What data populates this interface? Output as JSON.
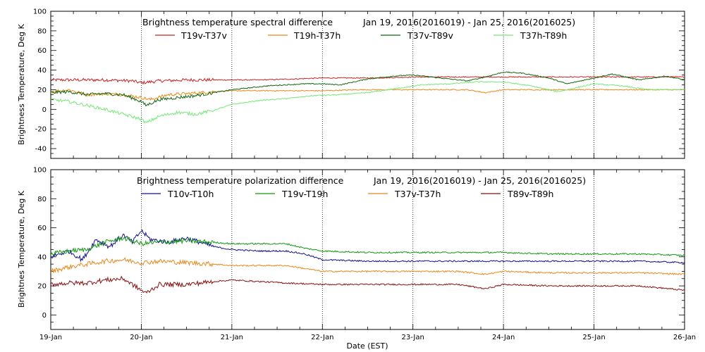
{
  "chart_data": [
    {
      "type": "line",
      "title": "Brightness temperature spectral difference",
      "date_range": "Jan 19, 2016(2016019) - Jan 25, 2016(2016025)",
      "ylabel": "Brightness Temperature, Deg K",
      "xlabel": "",
      "ylim": [
        -50,
        100
      ],
      "yticks": [
        "-40",
        "-20",
        "0",
        "20",
        "40",
        "60",
        "80",
        "100"
      ],
      "ytick_values": [
        -40,
        -20,
        0,
        20,
        40,
        60,
        80,
        100
      ],
      "xlim": [
        0,
        7
      ],
      "grid": "vertical dotted lines at each day",
      "legend_position": "top",
      "series": [
        {
          "name": "T19v-T37v",
          "color": "#cc2222",
          "x": [
            0,
            0.3,
            0.6,
            0.9,
            1.0,
            1.2,
            1.5,
            1.9,
            2.3,
            2.7,
            3.0,
            3.3,
            3.6,
            4.0,
            4.4,
            4.7,
            5.0,
            5.4,
            5.8,
            6.2,
            6.6,
            7.0
          ],
          "y": [
            30,
            30,
            30,
            29,
            27,
            29,
            30,
            30,
            30,
            31,
            32,
            32,
            32,
            33,
            33,
            33,
            33,
            33,
            33,
            33,
            33,
            33
          ]
        },
        {
          "name": "T19h-T37h",
          "color": "#e8881a",
          "x": [
            0,
            0.2,
            0.4,
            0.6,
            0.8,
            1.0,
            1.1,
            1.3,
            1.5,
            1.8,
            2.0,
            2.3,
            2.6,
            3.0,
            3.4,
            3.8,
            4.2,
            4.6,
            4.8,
            5.0,
            5.4,
            5.8,
            6.2,
            6.5,
            6.8,
            7.0
          ],
          "y": [
            18,
            20,
            15,
            16,
            15,
            12,
            10,
            15,
            16,
            18,
            19,
            19,
            19,
            19,
            20,
            20,
            20,
            20,
            17,
            20,
            20,
            20,
            20,
            20,
            20,
            20
          ]
        },
        {
          "name": "T37v-T89v",
          "color": "#116611",
          "x": [
            0,
            0.2,
            0.4,
            0.6,
            0.8,
            1.0,
            1.05,
            1.2,
            1.4,
            1.6,
            1.8,
            2.0,
            2.4,
            2.8,
            3.0,
            3.2,
            3.5,
            3.8,
            4.0,
            4.3,
            4.6,
            4.8,
            5.0,
            5.2,
            5.5,
            5.7,
            6.0,
            6.2,
            6.5,
            6.8,
            7.0
          ],
          "y": [
            17,
            18,
            15,
            16,
            15,
            8,
            4,
            10,
            12,
            14,
            17,
            20,
            24,
            26,
            26,
            25,
            31,
            34,
            35,
            32,
            29,
            33,
            38,
            37,
            32,
            26,
            32,
            36,
            30,
            34,
            30
          ]
        },
        {
          "name": "T37h-T89h",
          "color": "#77e877",
          "x": [
            0,
            0.2,
            0.4,
            0.6,
            0.8,
            1.0,
            1.05,
            1.2,
            1.4,
            1.6,
            1.8,
            2.0,
            2.3,
            2.6,
            2.9,
            3.2,
            3.5,
            3.8,
            4.1,
            4.4,
            4.7,
            5.0,
            5.3,
            5.6,
            6.0,
            6.3,
            6.6,
            7.0
          ],
          "y": [
            10,
            8,
            4,
            0,
            -5,
            -10,
            -14,
            -7,
            -3,
            -5,
            -1,
            5,
            9,
            11,
            14,
            15,
            17,
            21,
            25,
            26,
            28,
            28,
            24,
            18,
            26,
            24,
            20,
            20
          ]
        }
      ]
    },
    {
      "type": "line",
      "title": "Brightness temperature polarization difference",
      "date_range": "Jan 19, 2016(2016019) - Jan 25, 2016(2016025)",
      "ylabel": "Brightnes Temperature, Deg K",
      "xlabel": "Date (EST)",
      "ylim": [
        -10,
        100
      ],
      "yticks": [
        "0",
        "20",
        "40",
        "60",
        "80",
        "100"
      ],
      "ytick_values": [
        0,
        20,
        40,
        60,
        80,
        100
      ],
      "xlim": [
        0,
        7
      ],
      "xticks": [
        "19-Jan",
        "20-Jan",
        "21-Jan",
        "22-Jan",
        "23-Jan",
        "24-Jan",
        "25-Jan",
        "26-Jan"
      ],
      "grid": "vertical dotted lines at each day",
      "legend_position": "top",
      "series": [
        {
          "name": "T10v-T10h",
          "color": "#111188",
          "x": [
            0,
            0.2,
            0.35,
            0.5,
            0.65,
            0.8,
            0.9,
            1.0,
            1.1,
            1.3,
            1.5,
            1.8,
            2.0,
            2.3,
            2.6,
            2.8,
            3.0,
            3.5,
            4.0,
            4.5,
            5.0,
            5.5,
            6.0,
            6.5,
            7.0
          ],
          "y": [
            40,
            44,
            38,
            52,
            47,
            55,
            50,
            58,
            52,
            50,
            53,
            47,
            45,
            44,
            44,
            42,
            38,
            37,
            37,
            37,
            37,
            37,
            37,
            37,
            36
          ]
        },
        {
          "name": "T19v-T19h",
          "color": "#119911",
          "x": [
            0,
            0.2,
            0.4,
            0.6,
            0.8,
            1.0,
            1.2,
            1.5,
            1.8,
            2.0,
            2.3,
            2.6,
            2.8,
            3.0,
            3.5,
            4.0,
            4.5,
            5.0,
            5.5,
            6.0,
            6.5,
            7.0
          ],
          "y": [
            42,
            44,
            45,
            50,
            53,
            49,
            50,
            51,
            50,
            49,
            49,
            49,
            46,
            44,
            43,
            43,
            43,
            43,
            42,
            42,
            42,
            41
          ]
        },
        {
          "name": "T37v-T37h",
          "color": "#e8881a",
          "x": [
            0,
            0.2,
            0.4,
            0.6,
            0.8,
            1.0,
            1.2,
            1.5,
            1.8,
            2.0,
            2.3,
            2.6,
            2.8,
            3.0,
            3.5,
            4.0,
            4.5,
            4.8,
            5.0,
            5.5,
            6.0,
            6.5,
            7.0
          ],
          "y": [
            30,
            33,
            35,
            37,
            38,
            36,
            37,
            36,
            35,
            34,
            34,
            34,
            32,
            30,
            30,
            30,
            30,
            28,
            30,
            29,
            29,
            29,
            28
          ]
        },
        {
          "name": "T89v-T89h",
          "color": "#881111",
          "x": [
            0,
            0.2,
            0.4,
            0.6,
            0.8,
            1.0,
            1.05,
            1.2,
            1.5,
            1.8,
            2.0,
            2.3,
            2.6,
            3.0,
            3.5,
            4.0,
            4.5,
            4.8,
            5.0,
            5.5,
            6.0,
            6.5,
            7.0
          ],
          "y": [
            21,
            22,
            22,
            24,
            25,
            17,
            15,
            21,
            21,
            23,
            24,
            23,
            22,
            21,
            21,
            21,
            21,
            18,
            21,
            20,
            20,
            20,
            17
          ]
        }
      ]
    }
  ]
}
